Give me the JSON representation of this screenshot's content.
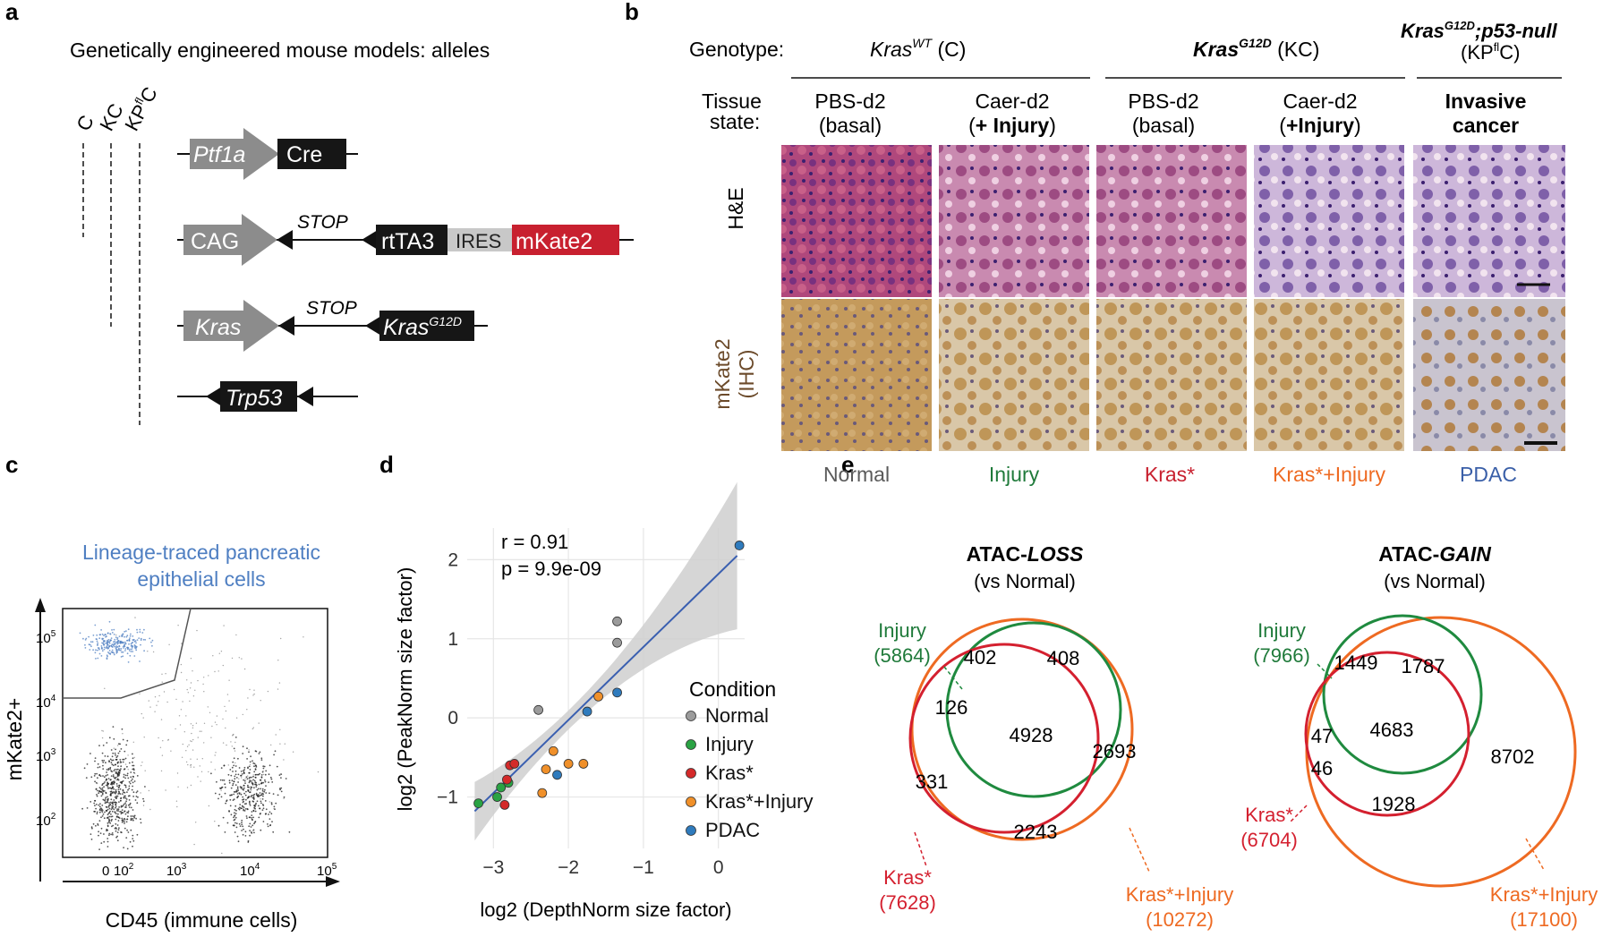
{
  "panel_labels": [
    "a",
    "b",
    "c",
    "d",
    "e"
  ],
  "panel_a": {
    "title": "Genetically engineered mouse models: alleles",
    "columns": [
      {
        "base": "C",
        "sup": ""
      },
      {
        "base": "KC",
        "sup": ""
      },
      {
        "base": "KP",
        "sup": "fl",
        "tail": "C"
      }
    ],
    "alleles": {
      "ptf1a": {
        "promoter": "Ptf1a",
        "gene": "Cre"
      },
      "cag": {
        "promoter": "CAG",
        "stop": "STOP",
        "gene1": "rtTA3",
        "ires": "IRES",
        "gene2": "mKate2"
      },
      "kras": {
        "promoter": "Kras",
        "stop": "STOP",
        "gene": "Kras",
        "gene_sup": "G12D"
      },
      "trp53": {
        "gene": "Trp53"
      }
    },
    "colors": {
      "promoter": "#8c8c8c",
      "gene": "#161616",
      "ires": "#c8c8c8",
      "mkate2": "#c8202f"
    }
  },
  "panel_b": {
    "genotype_label": "Genotype:",
    "tissue_label_1": "Tissue",
    "tissue_label_2": "state:",
    "groups": [
      {
        "base": "Kras",
        "sup": "WT",
        "tail": " (C)"
      },
      {
        "base": "Kras",
        "sup": "G12D",
        "tail": " (KC)"
      },
      {
        "line1_base": "Kras",
        "line1_sup": "G12D",
        "line1_tail": ";p53-null",
        "line2_base": "(KP",
        "line2_sup": "fl",
        "line2_tail": "C)"
      }
    ],
    "columns": [
      {
        "state1": "PBS-d2",
        "state2": "(basal)",
        "condition": "Normal",
        "color": "#5a5a5a"
      },
      {
        "state1": "Caer-d2",
        "state2_bold": "+ Injury",
        "condition": "Injury",
        "color": "#1f7a3a"
      },
      {
        "state1": "PBS-d2",
        "state2": "(basal)",
        "condition": "Kras*",
        "color": "#c8202f"
      },
      {
        "state1": "Caer-d2",
        "state2_bold": "+Injury",
        "condition": "Kras*+Injury",
        "color": "#ee6a22"
      },
      {
        "state1": "Invasive",
        "state2": "cancer",
        "condition": "PDAC",
        "color": "#3a5fa8"
      }
    ],
    "row_labels": {
      "he": "H&E",
      "ihc_1": "mKate2",
      "ihc_2": "(IHC)"
    }
  },
  "panel_c": {
    "title_1": "Lineage-traced pancreatic",
    "title_2": "epithelial cells",
    "ylabel": "mKate2+",
    "xlabel": "CD45 (immune cells)",
    "yticks": [
      {
        "base": "10",
        "exp": "5"
      },
      {
        "base": "10",
        "exp": "4"
      },
      {
        "base": "10",
        "exp": "3"
      },
      {
        "base": "10",
        "exp": "2"
      }
    ],
    "xticks": [
      {
        "base": "0",
        "exp": ""
      },
      {
        "base": "10",
        "exp": "2"
      },
      {
        "base": "10",
        "exp": "3"
      },
      {
        "base": "10",
        "exp": "4"
      },
      {
        "base": "10",
        "exp": "5"
      }
    ],
    "gate_color": "#4f7fc2"
  },
  "chart_data": {
    "type": "scatter",
    "xlabel": "log2 (DepthNorm size factor)",
    "ylabel": "log2 (PeakNorm size factor)",
    "xlim": [
      -3.35,
      0.35
    ],
    "ylim": [
      -1.65,
      2.4
    ],
    "xticks": [
      -3,
      -2,
      -1,
      0
    ],
    "yticks": [
      -1,
      0,
      1,
      2
    ],
    "xtick_labels": [
      "−3",
      "−2",
      "−1",
      "0"
    ],
    "ytick_labels": [
      "−1",
      "0",
      "1",
      "2"
    ],
    "grid": true,
    "legend_title": "Condition",
    "legend_position": "right",
    "annotation_r": "r = 0.91",
    "annotation_p": "p = 9.9e-09",
    "fit_line": {
      "x": [
        -3.25,
        0.25
      ],
      "y": [
        -1.18,
        2.05
      ]
    },
    "series": [
      {
        "name": "Normal",
        "color": "#9b9b9b",
        "points": [
          [
            -1.35,
            1.22
          ],
          [
            -1.35,
            0.95
          ],
          [
            -2.4,
            0.1
          ]
        ]
      },
      {
        "name": "Injury",
        "color": "#2aa344",
        "points": [
          [
            -3.2,
            -1.08
          ],
          [
            -2.95,
            -1.0
          ],
          [
            -2.9,
            -0.88
          ],
          [
            -2.8,
            -0.82
          ]
        ]
      },
      {
        "name": "Kras*",
        "color": "#d42a2a",
        "points": [
          [
            -2.78,
            -0.6
          ],
          [
            -2.72,
            -0.58
          ],
          [
            -2.82,
            -0.78
          ],
          [
            -2.85,
            -1.1
          ]
        ]
      },
      {
        "name": "Kras*+Injury",
        "color": "#f0902a",
        "points": [
          [
            -1.6,
            0.27
          ],
          [
            -2.2,
            -0.42
          ],
          [
            -2.0,
            -0.58
          ],
          [
            -2.3,
            -0.65
          ],
          [
            -1.8,
            -0.58
          ],
          [
            -2.35,
            -0.95
          ]
        ]
      },
      {
        "name": "PDAC",
        "color": "#2f7bbd",
        "points": [
          [
            0.28,
            2.18
          ],
          [
            -1.35,
            0.32
          ],
          [
            -1.75,
            0.08
          ],
          [
            -2.15,
            -0.72
          ]
        ]
      }
    ],
    "band_color": "#cfcfcf",
    "line_color": "#3a5fb0"
  },
  "panel_e": {
    "loss": {
      "title_base": "ATAC-",
      "title_em": "LOSS",
      "subtitle": "(vs Normal)",
      "injury_label": "Injury",
      "injury_count": "(5864)",
      "kras_label": "Kras*",
      "kras_count": "(7628)",
      "ki_label": "Kras*+Injury",
      "ki_count": "(10272)",
      "regions": [
        "402",
        "408",
        "126",
        "4928",
        "2693",
        "331",
        "2243"
      ]
    },
    "gain": {
      "title_base": "ATAC-",
      "title_em": "GAIN",
      "subtitle": "(vs Normal)",
      "injury_label": "Injury",
      "injury_count": "(7966)",
      "kras_label": "Kras*",
      "kras_count": "(6704)",
      "ki_label": "Kras*+Injury",
      "ki_count": "(17100)",
      "regions": [
        "1449",
        "1787",
        "47",
        "4683",
        "8702",
        "46",
        "1928"
      ]
    },
    "colors": {
      "injury": "#1f8a3f",
      "kras": "#d4202f",
      "ki": "#ee6a22"
    }
  }
}
